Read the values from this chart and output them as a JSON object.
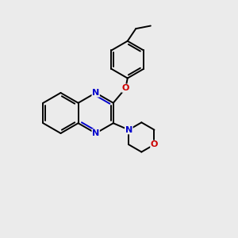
{
  "background_color": "#ebebeb",
  "bond_color": "#000000",
  "N_color": "#0000cc",
  "O_color": "#cc0000",
  "line_width": 1.4,
  "dbo": 0.1,
  "figsize": [
    3.0,
    3.0
  ],
  "dpi": 100,
  "xlim": [
    0,
    10
  ],
  "ylim": [
    0,
    10
  ]
}
